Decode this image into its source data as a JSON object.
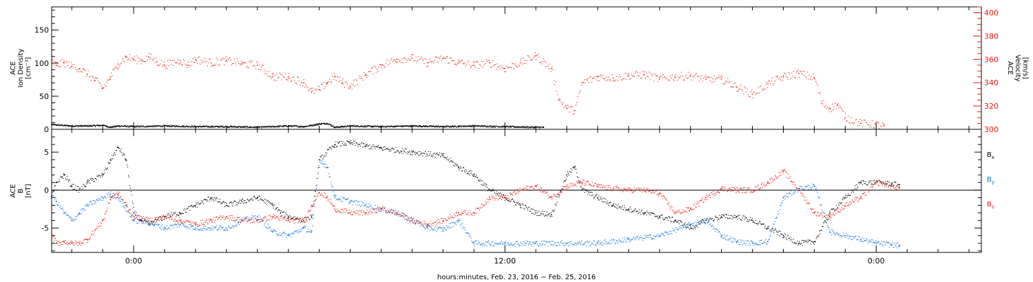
{
  "chart_data": [
    {
      "type": "scatter",
      "ylabel_lines": [
        "ACE",
        "Ion Density",
        "[cm⁻³]"
      ],
      "ylim": [
        0,
        185
      ],
      "yticks": [
        0,
        50,
        100,
        150
      ],
      "ylabel_right_lines": [
        "ACE",
        "Velocity",
        "[km/s]"
      ],
      "ylim_right": [
        300,
        405
      ],
      "yticks_right": [
        300,
        320,
        340,
        360,
        380,
        400
      ],
      "series": [
        {
          "name": "",
          "axis": "left",
          "color": "#000000",
          "points": [
            [
              -5.3,
              7
            ],
            [
              -4,
              5
            ],
            [
              -3,
              5
            ],
            [
              -2,
              6
            ],
            [
              -1.5,
              3
            ],
            [
              -1,
              5
            ],
            [
              0,
              4
            ],
            [
              2,
              5
            ],
            [
              4,
              4
            ],
            [
              6,
              4
            ],
            [
              8,
              3
            ],
            [
              10,
              5
            ],
            [
              11,
              4
            ],
            [
              12,
              8
            ],
            [
              12.5,
              9
            ],
            [
              13,
              3
            ],
            [
              14,
              5
            ],
            [
              16,
              4
            ],
            [
              18,
              5
            ],
            [
              20,
              4
            ],
            [
              22,
              5
            ],
            [
              24,
              4
            ],
            [
              26,
              3
            ],
            [
              26.5,
              3
            ]
          ]
        },
        {
          "name": "",
          "axis": "right",
          "color": "#e8180f",
          "points": [
            [
              -5.3,
              358
            ],
            [
              -5,
              355
            ],
            [
              -4.5,
              357
            ],
            [
              -4,
              354
            ],
            [
              -3.5,
              352
            ],
            [
              -3,
              347
            ],
            [
              -2.5,
              342
            ],
            [
              -2,
              335
            ],
            [
              -1.5,
              345
            ],
            [
              -1,
              356
            ],
            [
              -0.5,
              362
            ],
            [
              0,
              360
            ],
            [
              0.5,
              359
            ],
            [
              1,
              362
            ],
            [
              1.5,
              358
            ],
            [
              2,
              355
            ],
            [
              3,
              359
            ],
            [
              3.5,
              355
            ],
            [
              4,
              360
            ],
            [
              5,
              357
            ],
            [
              6,
              359
            ],
            [
              7,
              356
            ],
            [
              8,
              355
            ],
            [
              9,
              345
            ],
            [
              10,
              345
            ],
            [
              11,
              340
            ],
            [
              11.5,
              332
            ],
            [
              12,
              334
            ],
            [
              12.5,
              340
            ],
            [
              13,
              345
            ],
            [
              13.5,
              340
            ],
            [
              14,
              337
            ],
            [
              15,
              347
            ],
            [
              16,
              355
            ],
            [
              17,
              360
            ],
            [
              18,
              361
            ],
            [
              19,
              357
            ],
            [
              20,
              361
            ],
            [
              21,
              357
            ],
            [
              22,
              355
            ],
            [
              23,
              357
            ],
            [
              24,
              352
            ],
            [
              25,
              357
            ],
            [
              26,
              363
            ],
            [
              27,
              352
            ],
            [
              27.5,
              325
            ],
            [
              28,
              318
            ],
            [
              28.5,
              316
            ],
            [
              29,
              340
            ],
            [
              30,
              345
            ],
            [
              31,
              344
            ],
            [
              32,
              346
            ],
            [
              33,
              347
            ],
            [
              34,
              343
            ],
            [
              35,
              345
            ],
            [
              36,
              346
            ],
            [
              37,
              343
            ],
            [
              38,
              343
            ],
            [
              39,
              336
            ],
            [
              40,
              330
            ],
            [
              41,
              339
            ],
            [
              42,
              345
            ],
            [
              43,
              348
            ],
            [
              44,
              344
            ],
            [
              44.5,
              322
            ],
            [
              45,
              318
            ],
            [
              45.5,
              321
            ],
            [
              46,
              310
            ],
            [
              47,
              305
            ],
            [
              48,
              304
            ],
            [
              48.5,
              303
            ]
          ]
        }
      ]
    },
    {
      "type": "scatter",
      "ylabel_lines": [
        "ACE",
        "B",
        "[nT]"
      ],
      "ylim": [
        -8.2,
        8.0
      ],
      "yticks": [
        -5,
        0,
        5
      ],
      "zero_line": true,
      "xlabel": "hours:minutes, Feb. 23, 2016 − Feb. 25, 2016",
      "xlim": [
        -5.3,
        54.8
      ],
      "xticks": [
        0,
        24,
        48
      ],
      "xtick_labels": [
        "0:00",
        "12:00",
        "0:00"
      ],
      "x_minor_step": 2,
      "series": [
        {
          "name": "Bx",
          "label_main": "B",
          "label_sub": "x",
          "color": "#000000",
          "points": [
            [
              -5.3,
              -0.8
            ],
            [
              -5,
              1
            ],
            [
              -4.5,
              2
            ],
            [
              -4,
              0.5
            ],
            [
              -3.5,
              0
            ],
            [
              -3,
              1
            ],
            [
              -2,
              2
            ],
            [
              -1.5,
              4
            ],
            [
              -1,
              5.6
            ],
            [
              -0.5,
              4
            ],
            [
              0,
              -3
            ],
            [
              0.5,
              -4
            ],
            [
              1,
              -4.5
            ],
            [
              2,
              -3.5
            ],
            [
              3,
              -3
            ],
            [
              4,
              -2
            ],
            [
              5,
              -1
            ],
            [
              6,
              -2
            ],
            [
              7,
              -1.5
            ],
            [
              8,
              -1
            ],
            [
              9,
              -2
            ],
            [
              9.5,
              -3
            ],
            [
              10,
              -3.5
            ],
            [
              11,
              -4
            ],
            [
              11.5,
              -3.5
            ],
            [
              12,
              4
            ],
            [
              13,
              6
            ],
            [
              14,
              6.2
            ],
            [
              15,
              5.8
            ],
            [
              16,
              5.5
            ],
            [
              18,
              5
            ],
            [
              20,
              4.5
            ],
            [
              21,
              3
            ],
            [
              22,
              2
            ],
            [
              23,
              0
            ],
            [
              24,
              -1
            ],
            [
              25,
              -2
            ],
            [
              26,
              -3
            ],
            [
              27,
              -3.2
            ],
            [
              28,
              2
            ],
            [
              28.5,
              3
            ],
            [
              29,
              0
            ],
            [
              30,
              -1
            ],
            [
              31,
              -2
            ],
            [
              32,
              -2.5
            ],
            [
              33,
              -3
            ],
            [
              34,
              -3.5
            ],
            [
              35,
              -4
            ],
            [
              36,
              -5
            ],
            [
              37,
              -4
            ],
            [
              38,
              -3.5
            ],
            [
              39,
              -3.5
            ],
            [
              40,
              -4
            ],
            [
              41,
              -5
            ],
            [
              42,
              -6
            ],
            [
              43,
              -7
            ],
            [
              44,
              -6.8
            ],
            [
              45,
              -3
            ],
            [
              46,
              -1
            ],
            [
              47,
              1
            ],
            [
              48,
              1
            ],
            [
              49,
              0.8
            ],
            [
              49.5,
              0.7
            ]
          ]
        },
        {
          "name": "By",
          "label_main": "B",
          "label_sub": "y",
          "color": "#0a70d4",
          "points": [
            [
              -5.3,
              -0.5
            ],
            [
              -5,
              -1.5
            ],
            [
              -4.5,
              -3
            ],
            [
              -4,
              -4
            ],
            [
              -3.5,
              -3
            ],
            [
              -3,
              -2
            ],
            [
              -2,
              -1
            ],
            [
              -1.5,
              -0.5
            ],
            [
              -1,
              -1
            ],
            [
              0,
              -4
            ],
            [
              1,
              -4.3
            ],
            [
              2,
              -5
            ],
            [
              3,
              -4.5
            ],
            [
              4,
              -5
            ],
            [
              5,
              -5
            ],
            [
              6,
              -5
            ],
            [
              7,
              -4
            ],
            [
              8,
              -3.5
            ],
            [
              9,
              -5.5
            ],
            [
              10,
              -6
            ],
            [
              11,
              -5
            ],
            [
              11.5,
              -5.5
            ],
            [
              12,
              4
            ],
            [
              12.5,
              3
            ],
            [
              13,
              -1
            ],
            [
              14,
              -1.5
            ],
            [
              15,
              -2
            ],
            [
              16,
              -2.5
            ],
            [
              17,
              -3
            ],
            [
              18,
              -4
            ],
            [
              19,
              -5
            ],
            [
              20,
              -5.2
            ],
            [
              21,
              -4
            ],
            [
              22,
              -7
            ],
            [
              24,
              -7
            ],
            [
              26,
              -7
            ],
            [
              28,
              -7
            ],
            [
              30,
              -7
            ],
            [
              32,
              -6.5
            ],
            [
              34,
              -6
            ],
            [
              36,
              -4.5
            ],
            [
              37,
              -4
            ],
            [
              38,
              -6
            ],
            [
              39,
              -6.8
            ],
            [
              40,
              -7
            ],
            [
              41,
              -6.8
            ],
            [
              42,
              -1
            ],
            [
              43,
              0.2
            ],
            [
              44,
              0.5
            ],
            [
              45,
              -5.5
            ],
            [
              46,
              -6
            ],
            [
              47,
              -6.5
            ],
            [
              48,
              -7
            ],
            [
              49,
              -7.2
            ],
            [
              49.5,
              -7.3
            ]
          ]
        },
        {
          "name": "Bz",
          "label_main": "B",
          "label_sub": "z",
          "color": "#e8180f",
          "points": [
            [
              -5.3,
              -6
            ],
            [
              -5,
              -7
            ],
            [
              -4.5,
              -6.8
            ],
            [
              -4,
              -7
            ],
            [
              -3.5,
              -7
            ],
            [
              -3,
              -6.5
            ],
            [
              -2,
              -4
            ],
            [
              -1.5,
              -1
            ],
            [
              -1,
              -0.5
            ],
            [
              -0.5,
              -2
            ],
            [
              0,
              -3.5
            ],
            [
              1,
              -4
            ],
            [
              2,
              -3.5
            ],
            [
              3,
              -4
            ],
            [
              4,
              -4.5
            ],
            [
              5,
              -4
            ],
            [
              6,
              -3.5
            ],
            [
              7,
              -4
            ],
            [
              8,
              -4
            ],
            [
              9,
              -3.5
            ],
            [
              10,
              -4
            ],
            [
              11,
              -4
            ],
            [
              11.5,
              -2
            ],
            [
              12,
              -0.3
            ],
            [
              12.5,
              -1
            ],
            [
              13,
              -2.5
            ],
            [
              14,
              -3
            ],
            [
              15,
              -3
            ],
            [
              16,
              -2.5
            ],
            [
              17,
              -3
            ],
            [
              18,
              -4
            ],
            [
              19,
              -4.5
            ],
            [
              20,
              -4
            ],
            [
              21,
              -3
            ],
            [
              22,
              -3
            ],
            [
              23,
              -1
            ],
            [
              24,
              -1
            ],
            [
              25,
              0
            ],
            [
              26,
              0.5
            ],
            [
              27,
              -1
            ],
            [
              28,
              0.5
            ],
            [
              29,
              1
            ],
            [
              30,
              0.5
            ],
            [
              31,
              0.2
            ],
            [
              32,
              0
            ],
            [
              33,
              0
            ],
            [
              34,
              -0.5
            ],
            [
              35,
              -3
            ],
            [
              36,
              -2.5
            ],
            [
              37,
              -1
            ],
            [
              38,
              0.2
            ],
            [
              39,
              0
            ],
            [
              40,
              0
            ],
            [
              41,
              1
            ],
            [
              42,
              2.5
            ],
            [
              43,
              0
            ],
            [
              44,
              -3
            ],
            [
              45,
              -3.5
            ],
            [
              46,
              -2
            ],
            [
              47,
              -1
            ],
            [
              48,
              1
            ],
            [
              49,
              0.5
            ],
            [
              49.5,
              0.3
            ]
          ]
        }
      ]
    }
  ]
}
